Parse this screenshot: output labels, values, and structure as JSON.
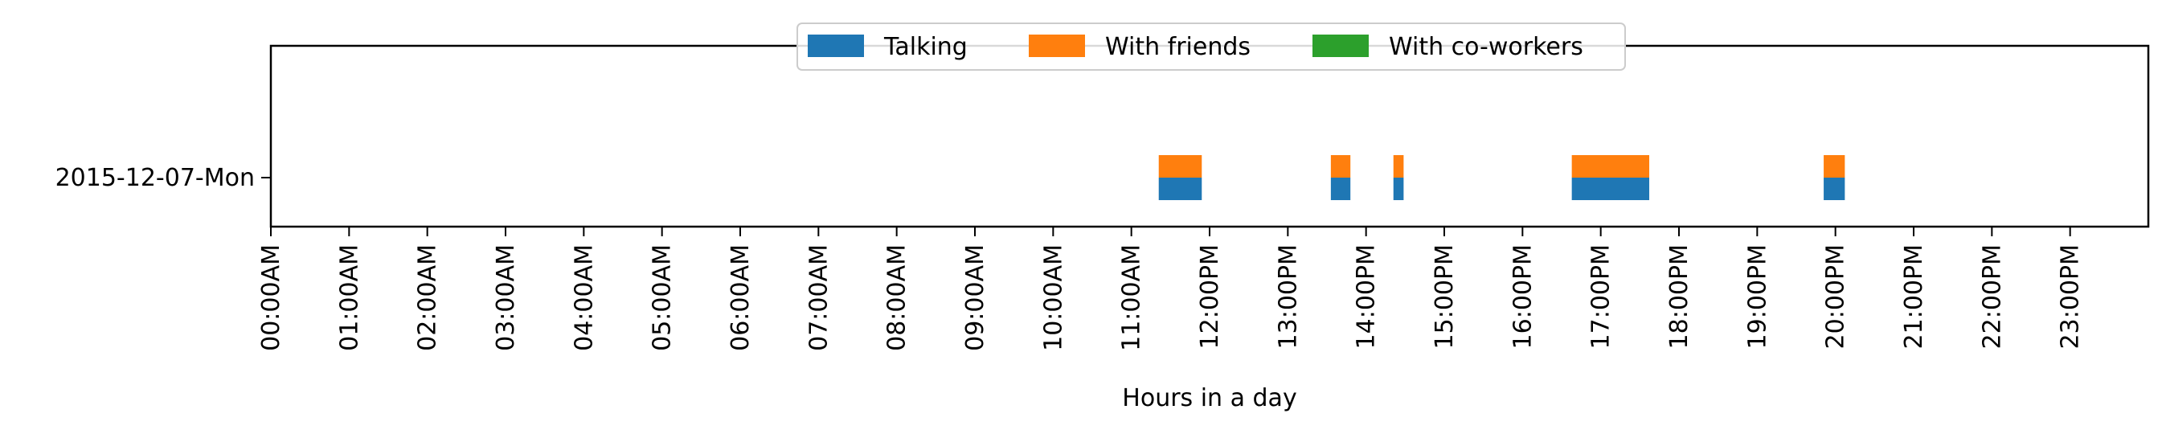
{
  "chart_data": {
    "type": "bar",
    "orientation": "horizontal-timeline",
    "title": "",
    "xlabel": "Hours in a day",
    "ylabel": "",
    "x_unit": "hours",
    "xlim": [
      0,
      24
    ],
    "x_ticks": [
      0,
      1,
      2,
      3,
      4,
      5,
      6,
      7,
      8,
      9,
      10,
      11,
      12,
      13,
      14,
      15,
      16,
      17,
      18,
      19,
      20,
      21,
      22,
      23
    ],
    "x_tick_labels": [
      "00:00AM",
      "01:00AM",
      "02:00AM",
      "03:00AM",
      "04:00AM",
      "05:00AM",
      "06:00AM",
      "07:00AM",
      "08:00AM",
      "09:00AM",
      "10:00AM",
      "11:00AM",
      "12:00PM",
      "13:00PM",
      "14:00PM",
      "15:00PM",
      "16:00PM",
      "17:00PM",
      "18:00PM",
      "19:00PM",
      "20:00PM",
      "21:00PM",
      "22:00PM",
      "23:00PM"
    ],
    "categories": [
      "2015-12-07-Mon"
    ],
    "grid": false,
    "legend_position": "top-center",
    "series": [
      {
        "name": "Talking",
        "color": "#1f77b4",
        "layer": "lower",
        "intervals": [
          [
            11.35,
            11.9
          ],
          [
            13.55,
            13.8
          ],
          [
            14.35,
            14.48
          ],
          [
            16.63,
            17.62
          ],
          [
            19.85,
            20.12
          ]
        ]
      },
      {
        "name": "With friends",
        "color": "#ff7f0e",
        "layer": "upper",
        "intervals": [
          [
            11.35,
            11.9
          ],
          [
            13.55,
            13.8
          ],
          [
            14.35,
            14.48
          ],
          [
            16.63,
            17.62
          ],
          [
            19.85,
            20.12
          ]
        ]
      },
      {
        "name": "With co-workers",
        "color": "#2ca02c",
        "layer": "upper",
        "intervals": []
      }
    ]
  }
}
